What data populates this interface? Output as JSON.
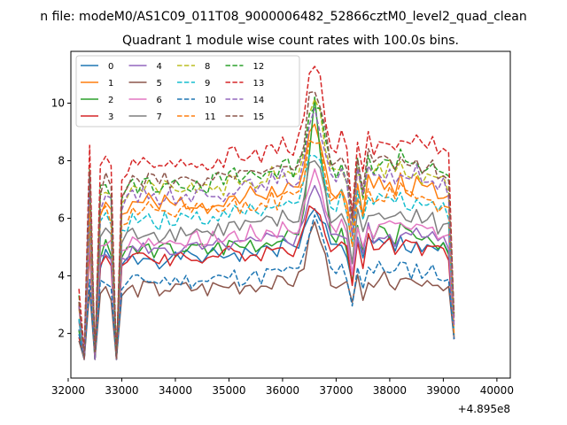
{
  "chart_data": {
    "type": "line",
    "suptitle": "n file: modeM0/AS1C09_011T08_9000006482_52866cztM0_level2_quad_clean",
    "title": "Quadrant 1 module wise count rates with 100.0s bins.",
    "xlabel": "",
    "ylabel": "",
    "offset_label": "+4.895e8",
    "xlim": [
      32050,
      40250
    ],
    "ylim": [
      0.45,
      11.8
    ],
    "xticks": [
      32000,
      33000,
      34000,
      35000,
      36000,
      37000,
      38000,
      39000,
      40000
    ],
    "yticks": [
      2,
      4,
      6,
      8,
      10
    ],
    "legend_position": "upper-left",
    "grid": false,
    "x_start": 32200,
    "x_step": 100,
    "series": [
      {
        "name": "0",
        "color": "#1f77b4",
        "dash": "solid",
        "base": 4.7,
        "peak": 6.4
      },
      {
        "name": "1",
        "color": "#ff7f0e",
        "dash": "solid",
        "base": 6.6,
        "peak": 9.2
      },
      {
        "name": "2",
        "color": "#2ca02c",
        "dash": "solid",
        "base": 5.0,
        "peak": 10.0
      },
      {
        "name": "3",
        "color": "#d62728",
        "dash": "solid",
        "base": 4.7,
        "peak": 6.5
      },
      {
        "name": "4",
        "color": "#9467bd",
        "dash": "solid",
        "base": 5.0,
        "peak": 7.2
      },
      {
        "name": "5",
        "color": "#8c564b",
        "dash": "solid",
        "base": 3.6,
        "peak": 5.8
      },
      {
        "name": "6",
        "color": "#e377c2",
        "dash": "solid",
        "base": 5.3,
        "peak": 7.5
      },
      {
        "name": "7",
        "color": "#7f7f7f",
        "dash": "solid",
        "base": 5.6,
        "peak": 8.2
      },
      {
        "name": "8",
        "color": "#bcbd22",
        "dash": "dashed",
        "base": 7.1,
        "peak": 10.2
      },
      {
        "name": "9",
        "color": "#17becf",
        "dash": "dashed",
        "base": 6.1,
        "peak": 8.1
      },
      {
        "name": "10",
        "color": "#1f77b4",
        "dash": "dashed",
        "base": 3.9,
        "peak": 5.9
      },
      {
        "name": "11",
        "color": "#ff7f0e",
        "dash": "dashed",
        "base": 6.3,
        "peak": 8.8
      },
      {
        "name": "12",
        "color": "#2ca02c",
        "dash": "dashed",
        "base": 7.3,
        "peak": 9.9
      },
      {
        "name": "13",
        "color": "#d62728",
        "dash": "dashed",
        "base": 8.0,
        "peak": 11.2
      },
      {
        "name": "14",
        "color": "#9467bd",
        "dash": "dashed",
        "base": 6.9,
        "peak": 9.6
      },
      {
        "name": "15",
        "color": "#8c564b",
        "dash": "dashed",
        "base": 7.4,
        "peak": 10.6
      }
    ],
    "shape": [
      0.45,
      0.3,
      1.05,
      0.3,
      0.95,
      1.0,
      0.95,
      0.25,
      0.93,
      0.95,
      0.98,
      0.97,
      0.99,
      1.0,
      0.98,
      0.96,
      1.0,
      0.98,
      0.97,
      1.0,
      0.99,
      0.98,
      1.0,
      0.99,
      0.97,
      1.0,
      1.01,
      0.99,
      1.02,
      1.03,
      1.0,
      1.02,
      1.04,
      1.02,
      1.01,
      1.05,
      1.06,
      1.04,
      1.08,
      1.07,
      1.05,
      1.08,
      1.12,
      1.3,
      1.45,
      1.25,
      1.12,
      1.08,
      1.05,
      1.1,
      1.02,
      0.8,
      1.1,
      0.95,
      1.12,
      1.05,
      1.1,
      1.08,
      1.1,
      1.05,
      1.12,
      1.08,
      1.06,
      1.1,
      1.05,
      1.07,
      1.08,
      1.02,
      1.04,
      1.0,
      0.33
    ]
  }
}
